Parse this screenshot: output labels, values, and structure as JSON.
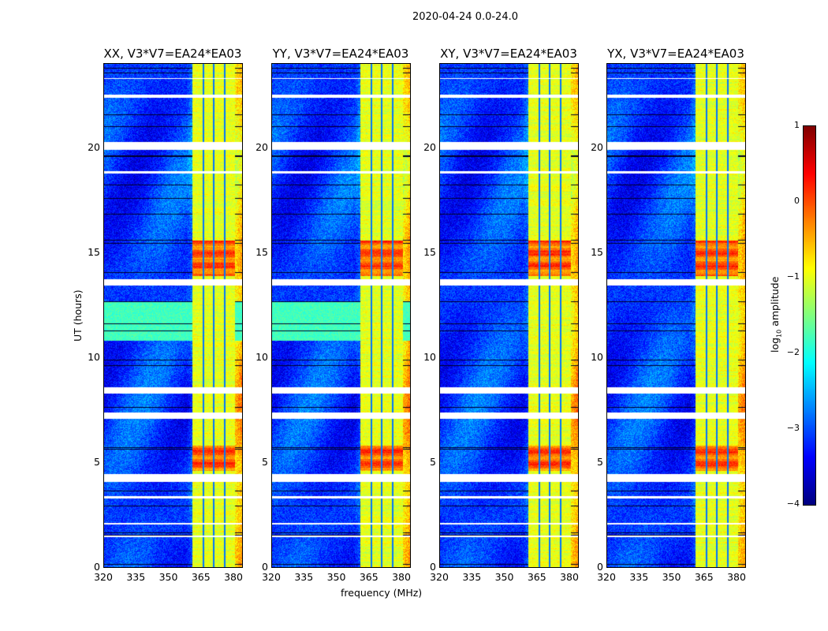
{
  "chart_data": {
    "type": "heatmap",
    "title": "2020-04-24 0.0-24.0",
    "xlabel": "frequency (MHz)",
    "ylabel": "UT (hours)",
    "xlim": [
      320,
      384
    ],
    "ylim": [
      0,
      24
    ],
    "xticks": [
      "320",
      "335",
      "350",
      "365",
      "380"
    ],
    "yticks": [
      "0",
      "5",
      "10",
      "15",
      "20"
    ],
    "panels": [
      {
        "title": "XX, V3*V7=EA24*EA03",
        "green_block": true
      },
      {
        "title": "YY, V3*V7=EA24*EA03",
        "green_block": true
      },
      {
        "title": "XY, V3*V7=EA24*EA03",
        "green_block": false
      },
      {
        "title": "YX, V3*V7=EA24*EA03",
        "green_block": false
      }
    ],
    "rfi_band_mhz": [
      360.7,
      380.4
    ],
    "subband_edges_mhz": [
      365.8,
      370.6,
      375.7
    ],
    "strong_rfi_hours": [
      [
        13.9,
        15.6
      ],
      [
        4.6,
        5.8
      ]
    ],
    "flagged_gaps_hours": [
      [
        22.4,
        22.55
      ],
      [
        19.9,
        20.3
      ],
      [
        13.45,
        13.75
      ],
      [
        8.3,
        8.6
      ],
      [
        7.1,
        7.4
      ],
      [
        4.1,
        4.45
      ],
      [
        3.3,
        3.4
      ],
      [
        2.05,
        2.12
      ],
      [
        1.45,
        1.52
      ],
      [
        23.3,
        23.35
      ],
      [
        18.8,
        18.9
      ]
    ],
    "colorbar": {
      "label": "log10 amplitude",
      "label_main": "log",
      "label_sub": "10",
      "label_tail": " amplitude",
      "range": [
        -4,
        1
      ],
      "ticks": [
        "1",
        "0",
        "−1",
        "−2",
        "−3",
        "−4"
      ]
    }
  }
}
